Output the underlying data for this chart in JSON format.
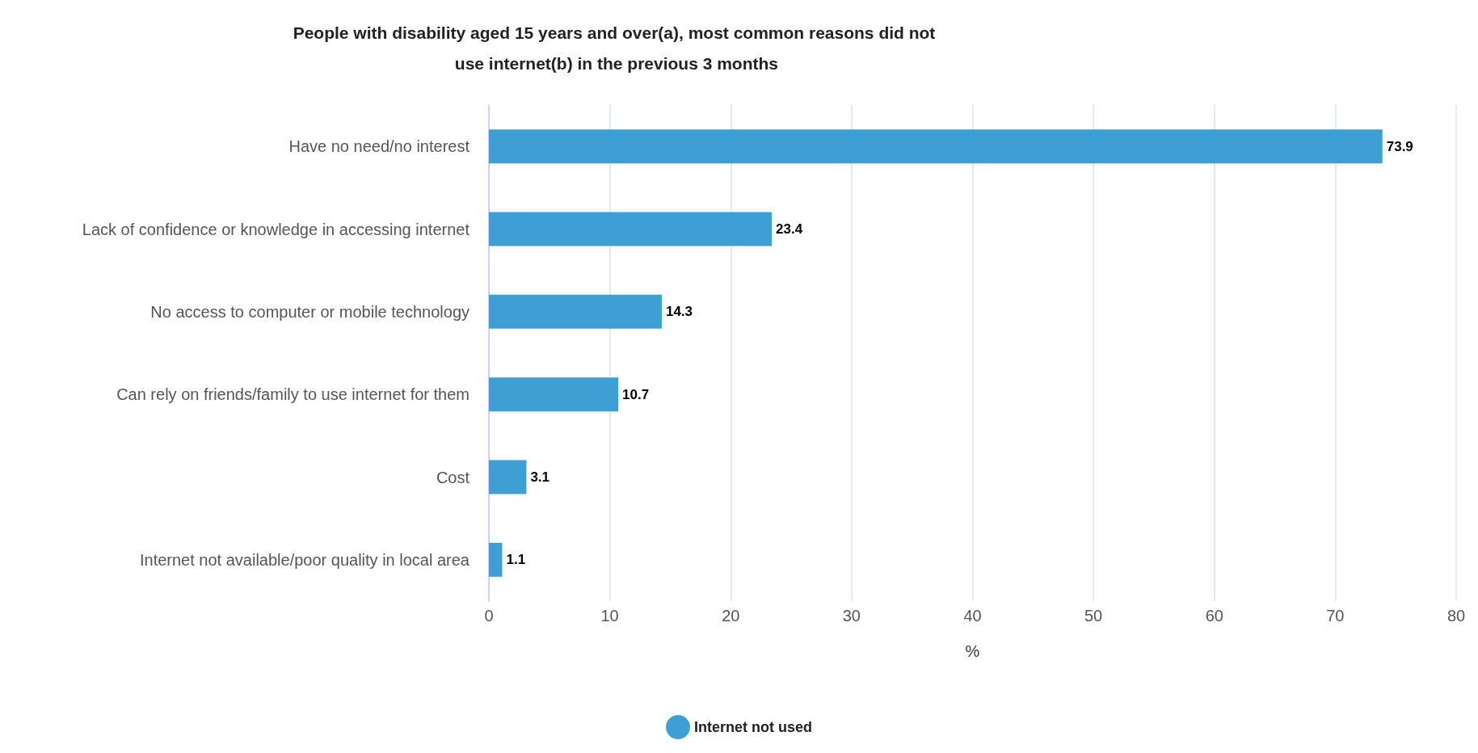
{
  "chart_data": {
    "type": "bar",
    "orientation": "horizontal",
    "title": "People with disability aged 15 years and over(a), most common reasons did not use internet(b) in the previous 3 months",
    "xlabel": "%",
    "categories": [
      "Have no need/no interest",
      "Lack of confidence or knowledge in accessing internet",
      "No access to computer or mobile technology",
      "Can rely on friends/family to use internet for them",
      "Cost",
      "Internet not available/poor quality in local area"
    ],
    "series": [
      {
        "name": "Internet not used",
        "color": "#3d9fd3",
        "values": [
          73.9,
          23.4,
          14.3,
          10.7,
          3.1,
          1.1
        ]
      }
    ],
    "xlim": [
      0,
      80
    ],
    "xticks": [
      0,
      10,
      20,
      30,
      40,
      50,
      60,
      70,
      80
    ],
    "grid": "x",
    "legend": "bottom",
    "data_labels": true
  }
}
